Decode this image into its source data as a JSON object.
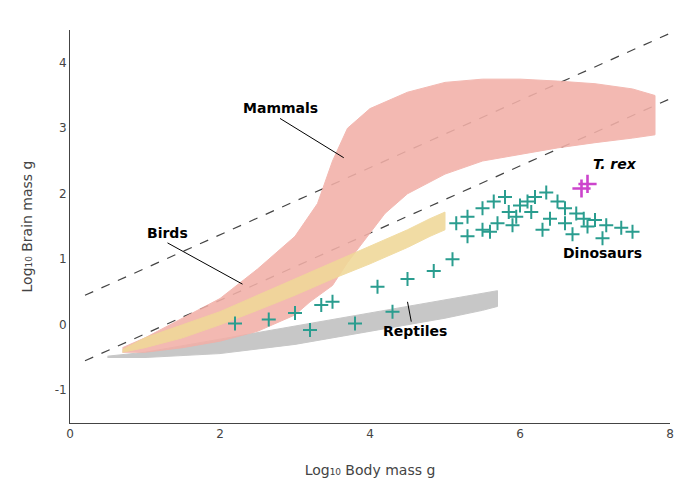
{
  "chart_data": {
    "type": "scatter",
    "xlabel": "Log₁₀ Body mass g",
    "ylabel": "Log₁₀ Brain mass g",
    "xlim": [
      0,
      8
    ],
    "ylim": [
      -1.5,
      4.5
    ],
    "xticks": [
      0,
      2,
      4,
      6,
      8
    ],
    "yticks": [
      -1,
      0,
      1,
      2,
      3,
      4
    ],
    "grid": false,
    "series": [
      {
        "type": "line",
        "line_style": "dashed",
        "color": "#444444",
        "x": [
          0.2,
          8.0
        ],
        "values": [
          -0.55,
          3.45
        ]
      },
      {
        "type": "line",
        "line_style": "dashed",
        "color": "#444444",
        "x": [
          0.2,
          8.0
        ],
        "values": [
          0.45,
          4.45
        ]
      },
      {
        "type": "polygon",
        "color": "#c0c0c0",
        "x": [
          0.5,
          1.0,
          2.0,
          3.0,
          4.0,
          5.0,
          5.5,
          5.7,
          5.7,
          5.5,
          5.0,
          4.0,
          3.0,
          2.0,
          1.0,
          0.5
        ],
        "values": [
          -0.48,
          -0.42,
          -0.22,
          -0.02,
          0.18,
          0.38,
          0.48,
          0.52,
          0.28,
          0.22,
          0.1,
          -0.1,
          -0.3,
          -0.44,
          -0.5,
          -0.5
        ]
      },
      {
        "type": "polygon",
        "color": "#f2b0a8",
        "x": [
          0.7,
          1.0,
          1.5,
          2.0,
          2.5,
          3.0,
          3.3,
          3.5,
          3.7,
          4.0,
          4.5,
          5.0,
          5.5,
          6.0,
          6.5,
          7.0,
          7.5,
          7.8,
          7.8,
          7.5,
          7.0,
          6.5,
          6.0,
          5.5,
          5.0,
          4.5,
          4.2,
          4.0,
          3.7,
          3.5,
          3.2,
          3.0,
          2.5,
          2.0,
          1.5,
          1.0,
          0.7
        ],
        "values": [
          -0.35,
          -0.2,
          0.1,
          0.4,
          0.85,
          1.35,
          1.85,
          2.5,
          3.0,
          3.3,
          3.55,
          3.7,
          3.75,
          3.75,
          3.72,
          3.68,
          3.6,
          3.5,
          2.9,
          2.85,
          2.78,
          2.7,
          2.6,
          2.5,
          2.3,
          2.0,
          1.7,
          1.4,
          0.95,
          0.6,
          0.35,
          0.15,
          -0.1,
          -0.25,
          -0.35,
          -0.42,
          -0.42
        ]
      },
      {
        "type": "polygon",
        "color": "#f0d898",
        "x": [
          0.7,
          1.0,
          1.5,
          2.0,
          2.5,
          3.0,
          3.5,
          4.0,
          4.5,
          4.8,
          5.0,
          5.0,
          4.8,
          4.5,
          4.0,
          3.5,
          3.0,
          2.5,
          2.0,
          1.5,
          1.0,
          0.7
        ],
        "values": [
          -0.38,
          -0.2,
          0.0,
          0.2,
          0.45,
          0.7,
          0.95,
          1.2,
          1.45,
          1.62,
          1.72,
          1.45,
          1.35,
          1.18,
          0.93,
          0.7,
          0.45,
          0.22,
          0.0,
          -0.2,
          -0.35,
          -0.42
        ]
      },
      {
        "type": "scatter",
        "marker": "plus",
        "color": "#2a9d8f",
        "x": [
          5.15,
          5.3,
          5.5,
          5.65,
          5.8,
          5.85,
          6.0,
          6.1,
          6.2,
          6.35,
          6.5,
          6.6,
          6.75,
          6.85,
          7.0,
          7.15,
          7.35,
          7.5,
          5.5,
          5.7,
          5.95,
          6.15,
          6.4,
          6.6,
          6.9,
          5.3,
          5.6,
          5.9,
          6.3,
          6.7,
          7.1
        ],
        "values": [
          1.55,
          1.65,
          1.78,
          1.88,
          1.95,
          1.72,
          1.82,
          1.88,
          1.95,
          2.02,
          1.88,
          1.78,
          1.7,
          1.62,
          1.6,
          1.52,
          1.48,
          1.42,
          1.45,
          1.55,
          1.65,
          1.72,
          1.62,
          1.55,
          1.5,
          1.35,
          1.42,
          1.52,
          1.45,
          1.38,
          1.32
        ]
      },
      {
        "type": "scatter",
        "marker": "plus",
        "color": "#cc44cc",
        "x": [
          6.82,
          6.9
        ],
        "values": [
          2.08,
          2.15
        ]
      },
      {
        "type": "scatter",
        "marker": "plus",
        "color": "#2a9d8f",
        "x": [
          2.2,
          2.65,
          3.0,
          3.35,
          3.5,
          4.1,
          4.5,
          4.85,
          5.1,
          3.2,
          3.8,
          4.3
        ],
        "values": [
          0.02,
          0.08,
          0.18,
          0.3,
          0.35,
          0.58,
          0.7,
          0.82,
          1.0,
          -0.08,
          0.02,
          0.2
        ]
      }
    ],
    "annotations": [
      {
        "text": "Mammals",
        "x": 3.65,
        "y": 2.55,
        "text_x": 2.8,
        "text_y": 3.15
      },
      {
        "text": "Birds",
        "x": 2.3,
        "y": 0.62,
        "text_x": 1.3,
        "text_y": 1.25
      },
      {
        "text": "Reptiles",
        "x": 4.5,
        "y": 0.35,
        "text_x": 4.6,
        "text_y": -0.25
      },
      {
        "text": "Dinosaurs",
        "x": 6.55,
        "y": 1.25
      },
      {
        "text": "T. rex",
        "x": 6.95,
        "y": 2.3
      }
    ]
  }
}
